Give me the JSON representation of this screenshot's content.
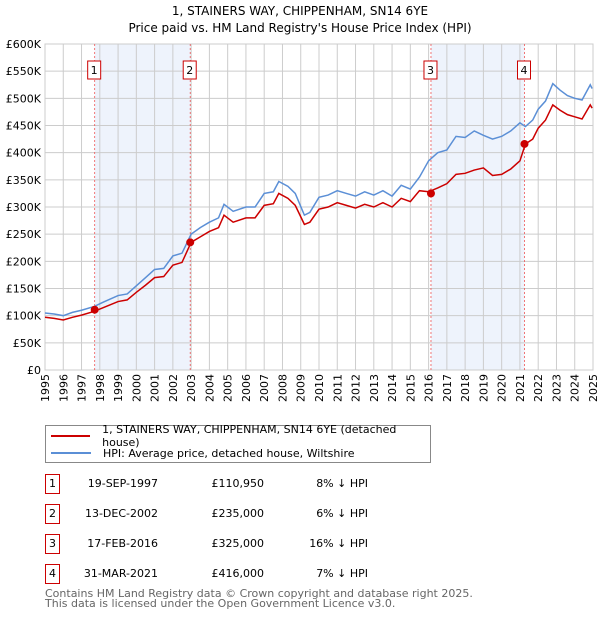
{
  "chart_data": {
    "type": "line",
    "title": "1, STAINERS WAY, CHIPPENHAM, SN14 6YE",
    "subtitle": "Price paid vs. HM Land Registry's House Price Index (HPI)",
    "xlim": [
      1995,
      2025
    ],
    "ylim": [
      0,
      600000
    ],
    "y_ticks": [
      "£0",
      "£50K",
      "£100K",
      "£150K",
      "£200K",
      "£250K",
      "£300K",
      "£350K",
      "£400K",
      "£450K",
      "£500K",
      "£550K",
      "£600K"
    ],
    "x_ticks": [
      "1995",
      "1996",
      "1997",
      "1998",
      "1999",
      "2000",
      "2001",
      "2002",
      "2003",
      "2004",
      "2005",
      "2006",
      "2007",
      "2008",
      "2009",
      "2010",
      "2011",
      "2012",
      "2013",
      "2014",
      "2015",
      "2016",
      "2017",
      "2018",
      "2019",
      "2020",
      "2021",
      "2022",
      "2023",
      "2024",
      "2025"
    ],
    "grid": true,
    "x": [
      1995,
      1995.5,
      1996,
      1996.5,
      1997,
      1997.7,
      1998.2,
      1999,
      1999.5,
      2000,
      2000.5,
      2001,
      2001.5,
      2002,
      2002.5,
      2003,
      2003.5,
      2004,
      2004.5,
      2004.8,
      2005.3,
      2006,
      2006.5,
      2007,
      2007.5,
      2007.8,
      2008.3,
      2008.7,
      2009.2,
      2009.5,
      2010,
      2010.5,
      2011,
      2011.5,
      2012,
      2012.5,
      2013,
      2013.5,
      2014,
      2014.5,
      2015,
      2015.5,
      2016,
      2016.5,
      2017,
      2017.5,
      2018,
      2018.5,
      2019,
      2019.5,
      2020,
      2020.5,
      2021,
      2021.3,
      2021.7,
      2022,
      2022.4,
      2022.8,
      2023.2,
      2023.6,
      2024,
      2024.4,
      2024.85,
      2024.95
    ],
    "series": [
      {
        "name": "1, STAINERS WAY, CHIPPENHAM, SN14 6YE (detached house)",
        "color": "#cc0000",
        "values": [
          97000,
          95000,
          92000,
          97000,
          101000,
          108000,
          115000,
          126000,
          129000,
          143000,
          156000,
          170000,
          172000,
          193000,
          198000,
          235000,
          245000,
          255000,
          262000,
          285000,
          272000,
          280000,
          280000,
          303000,
          306000,
          325000,
          316000,
          303000,
          268000,
          272000,
          296000,
          300000,
          308000,
          303000,
          298000,
          305000,
          300000,
          308000,
          300000,
          316000,
          310000,
          330000,
          328000,
          335000,
          343000,
          360000,
          362000,
          368000,
          372000,
          358000,
          360000,
          370000,
          385000,
          416000,
          425000,
          445000,
          460000,
          488000,
          478000,
          470000,
          466000,
          462000,
          488000,
          482000
        ]
      },
      {
        "name": "HPI: Average price, detached house, Wiltshire",
        "color": "#5b8fd6",
        "values": [
          105000,
          103000,
          100000,
          106000,
          110000,
          117000,
          125000,
          137000,
          140000,
          155000,
          170000,
          185000,
          187000,
          210000,
          215000,
          250000,
          262000,
          272000,
          280000,
          305000,
          292000,
          300000,
          300000,
          325000,
          328000,
          347000,
          338000,
          325000,
          285000,
          290000,
          318000,
          322000,
          330000,
          325000,
          320000,
          328000,
          322000,
          330000,
          320000,
          340000,
          333000,
          355000,
          385000,
          400000,
          405000,
          430000,
          428000,
          440000,
          432000,
          425000,
          430000,
          440000,
          455000,
          448000,
          460000,
          480000,
          495000,
          527000,
          515000,
          505000,
          500000,
          497000,
          525000,
          518000
        ]
      }
    ],
    "sales": [
      {
        "label": "1",
        "x": 1997.72,
        "value": 110950
      },
      {
        "label": "2",
        "x": 2002.95,
        "value": 235000
      },
      {
        "label": "3",
        "x": 2016.13,
        "value": 325000
      },
      {
        "label": "4",
        "x": 2021.25,
        "value": 416000
      }
    ]
  },
  "legend": {
    "red": "1, STAINERS WAY, CHIPPENHAM, SN14 6YE (detached house)",
    "blue": "HPI: Average price, detached house, Wiltshire"
  },
  "table": [
    {
      "num": "1",
      "date": "19-SEP-1997",
      "price": "£110,950",
      "hpi": "8% ↓ HPI"
    },
    {
      "num": "2",
      "date": "13-DEC-2002",
      "price": "£235,000",
      "hpi": "6% ↓ HPI"
    },
    {
      "num": "3",
      "date": "17-FEB-2016",
      "price": "£325,000",
      "hpi": "16% ↓ HPI"
    },
    {
      "num": "4",
      "date": "31-MAR-2021",
      "price": "£416,000",
      "hpi": "7% ↓ HPI"
    }
  ],
  "footer": {
    "line1": "Contains HM Land Registry data © Crown copyright and database right 2025.",
    "line2": "This data is licensed under the Open Government Licence v3.0."
  }
}
